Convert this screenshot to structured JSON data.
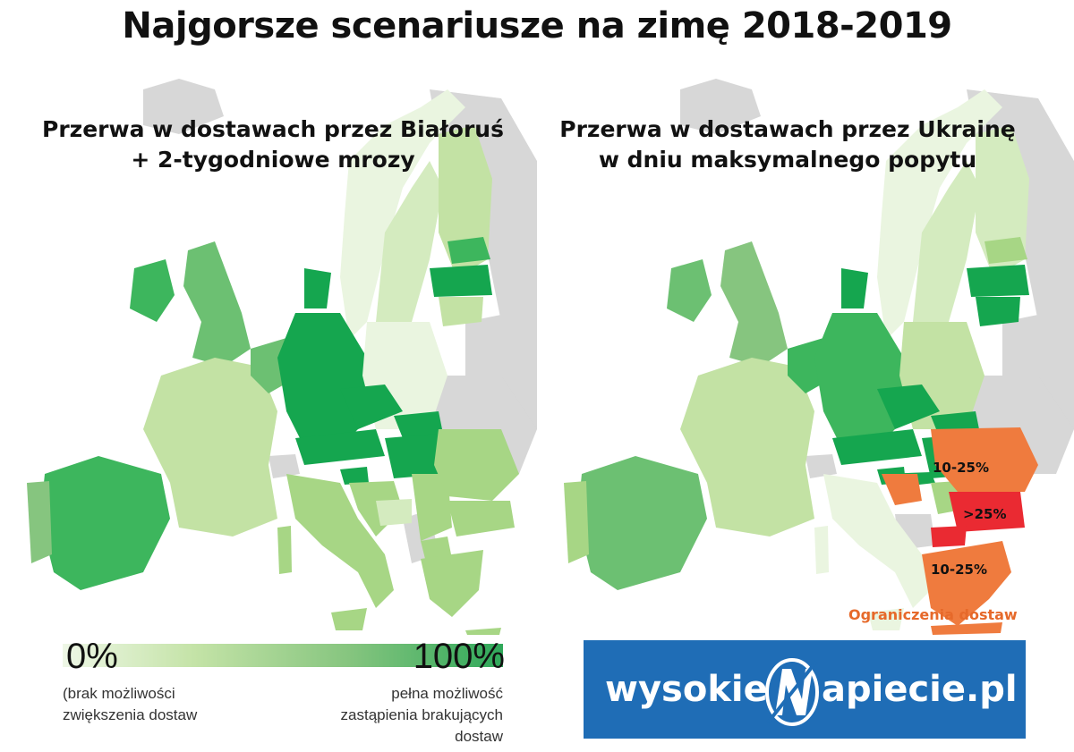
{
  "title": "Najgorsze scenariusze na zimę 2018-2019",
  "maps": {
    "left": {
      "subtitle_line1": "Przerwa w dostawach przez Białoruś",
      "subtitle_line2": "+ 2-tygodniowe mrozy"
    },
    "right": {
      "subtitle_line1": "Przerwa w dostawach przez Ukrainę",
      "subtitle_line2": "w dniu maksymalnego popytu"
    }
  },
  "region_labels": {
    "romania": "10-25%",
    "bulgaria": ">25%",
    "greece": "10-25%"
  },
  "restriction_note": "Ograniczenia dostaw",
  "legend": {
    "min_label": "0%",
    "max_label": "100%",
    "min_desc_line1": "(brak możliwości",
    "min_desc_line2": "zwiększenia dostaw",
    "max_desc_line1": "pełna możliwość",
    "max_desc_line2": "zastąpienia brakujących",
    "max_desc_line3": "dostaw"
  },
  "logo": {
    "left_text": "wysokie",
    "right_text": "apiecie.pl"
  },
  "colors": {
    "grey": "#d7d7d7",
    "very_light_green": "#eaf5e0",
    "light_green": "#c3e2a4",
    "medium_light_green": "#a7d685",
    "medium_green": "#6cc072",
    "green": "#3db65d",
    "dark_green": "#15a64f",
    "orange": "#ef7b3e",
    "red": "#ea2a32",
    "logo_blue": "#1f6db6"
  }
}
